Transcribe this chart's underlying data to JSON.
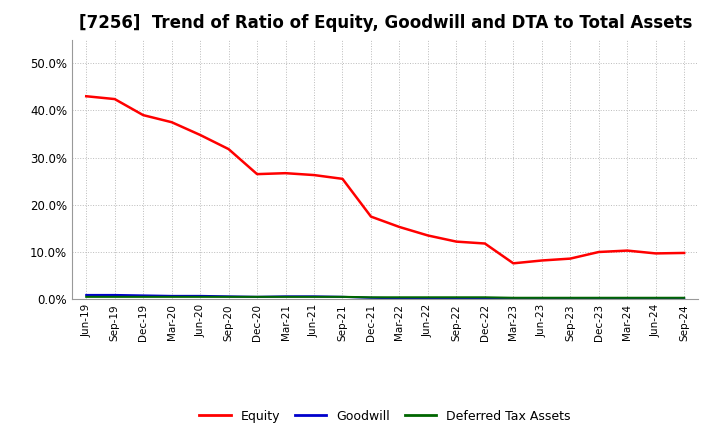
{
  "title": "[7256]  Trend of Ratio of Equity, Goodwill and DTA to Total Assets",
  "x_labels": [
    "Jun-19",
    "Sep-19",
    "Dec-19",
    "Mar-20",
    "Jun-20",
    "Sep-20",
    "Dec-20",
    "Mar-21",
    "Jun-21",
    "Sep-21",
    "Dec-21",
    "Mar-22",
    "Jun-22",
    "Sep-22",
    "Dec-22",
    "Mar-23",
    "Jun-23",
    "Sep-23",
    "Dec-23",
    "Mar-24",
    "Jun-24",
    "Sep-24"
  ],
  "equity": [
    0.43,
    0.424,
    0.39,
    0.375,
    0.348,
    0.318,
    0.265,
    0.267,
    0.263,
    0.255,
    0.175,
    0.153,
    0.135,
    0.122,
    0.118,
    0.076,
    0.082,
    0.086,
    0.1,
    0.103,
    0.097,
    0.098
  ],
  "goodwill": [
    0.009,
    0.009,
    0.008,
    0.007,
    0.007,
    0.006,
    0.005,
    0.006,
    0.006,
    0.005,
    0.003,
    0.002,
    0.002,
    0.001,
    0.001,
    0.001,
    0.001,
    0.001,
    0.001,
    0.001,
    0.001,
    0.001
  ],
  "dta": [
    0.005,
    0.005,
    0.005,
    0.005,
    0.005,
    0.005,
    0.005,
    0.005,
    0.005,
    0.005,
    0.004,
    0.004,
    0.004,
    0.004,
    0.004,
    0.003,
    0.003,
    0.003,
    0.003,
    0.003,
    0.003,
    0.003
  ],
  "equity_color": "#FF0000",
  "goodwill_color": "#0000CC",
  "dta_color": "#006600",
  "background_color": "#FFFFFF",
  "plot_bg_color": "#FFFFFF",
  "grid_color": "#BBBBBB",
  "ylim": [
    0.0,
    0.55
  ],
  "yticks": [
    0.0,
    0.1,
    0.2,
    0.3,
    0.4,
    0.5
  ],
  "title_fontsize": 12,
  "legend_labels": [
    "Equity",
    "Goodwill",
    "Deferred Tax Assets"
  ]
}
